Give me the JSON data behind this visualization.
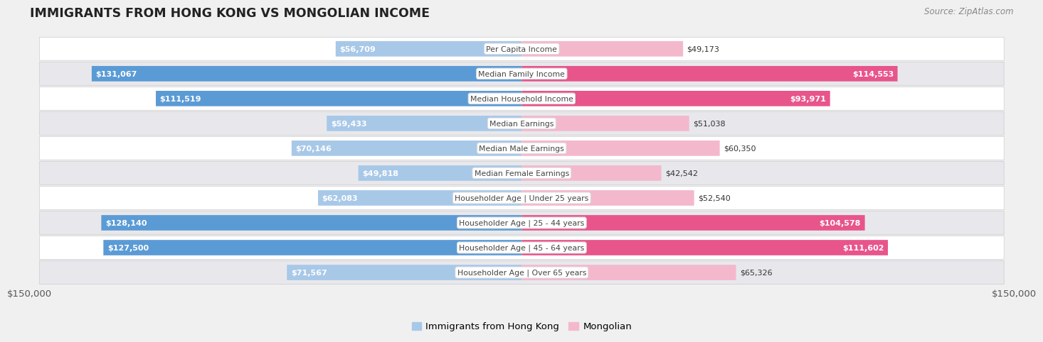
{
  "title": "IMMIGRANTS FROM HONG KONG VS MONGOLIAN INCOME",
  "source": "Source: ZipAtlas.com",
  "categories": [
    "Per Capita Income",
    "Median Family Income",
    "Median Household Income",
    "Median Earnings",
    "Median Male Earnings",
    "Median Female Earnings",
    "Householder Age | Under 25 years",
    "Householder Age | 25 - 44 years",
    "Householder Age | 45 - 64 years",
    "Householder Age | Over 65 years"
  ],
  "hong_kong_values": [
    56709,
    131067,
    111519,
    59433,
    70146,
    49818,
    62083,
    128140,
    127500,
    71567
  ],
  "mongolian_values": [
    49173,
    114553,
    93971,
    51038,
    60350,
    42542,
    52540,
    104578,
    111602,
    65326
  ],
  "hong_kong_color_light": "#a8c8e8",
  "hong_kong_color_dark": "#5b9bd5",
  "mongolian_color_light": "#f4b8cc",
  "mongolian_color_dark": "#e8558a",
  "max_value": 150000,
  "x_tick_labels": [
    "$150,000",
    "$150,000"
  ],
  "hk_label": "Immigrants from Hong Kong",
  "mongolian_label": "Mongolian",
  "bg_color": "#f0f0f0",
  "row_bg": "#ffffff",
  "row_bg_alt": "#e8e8ec"
}
